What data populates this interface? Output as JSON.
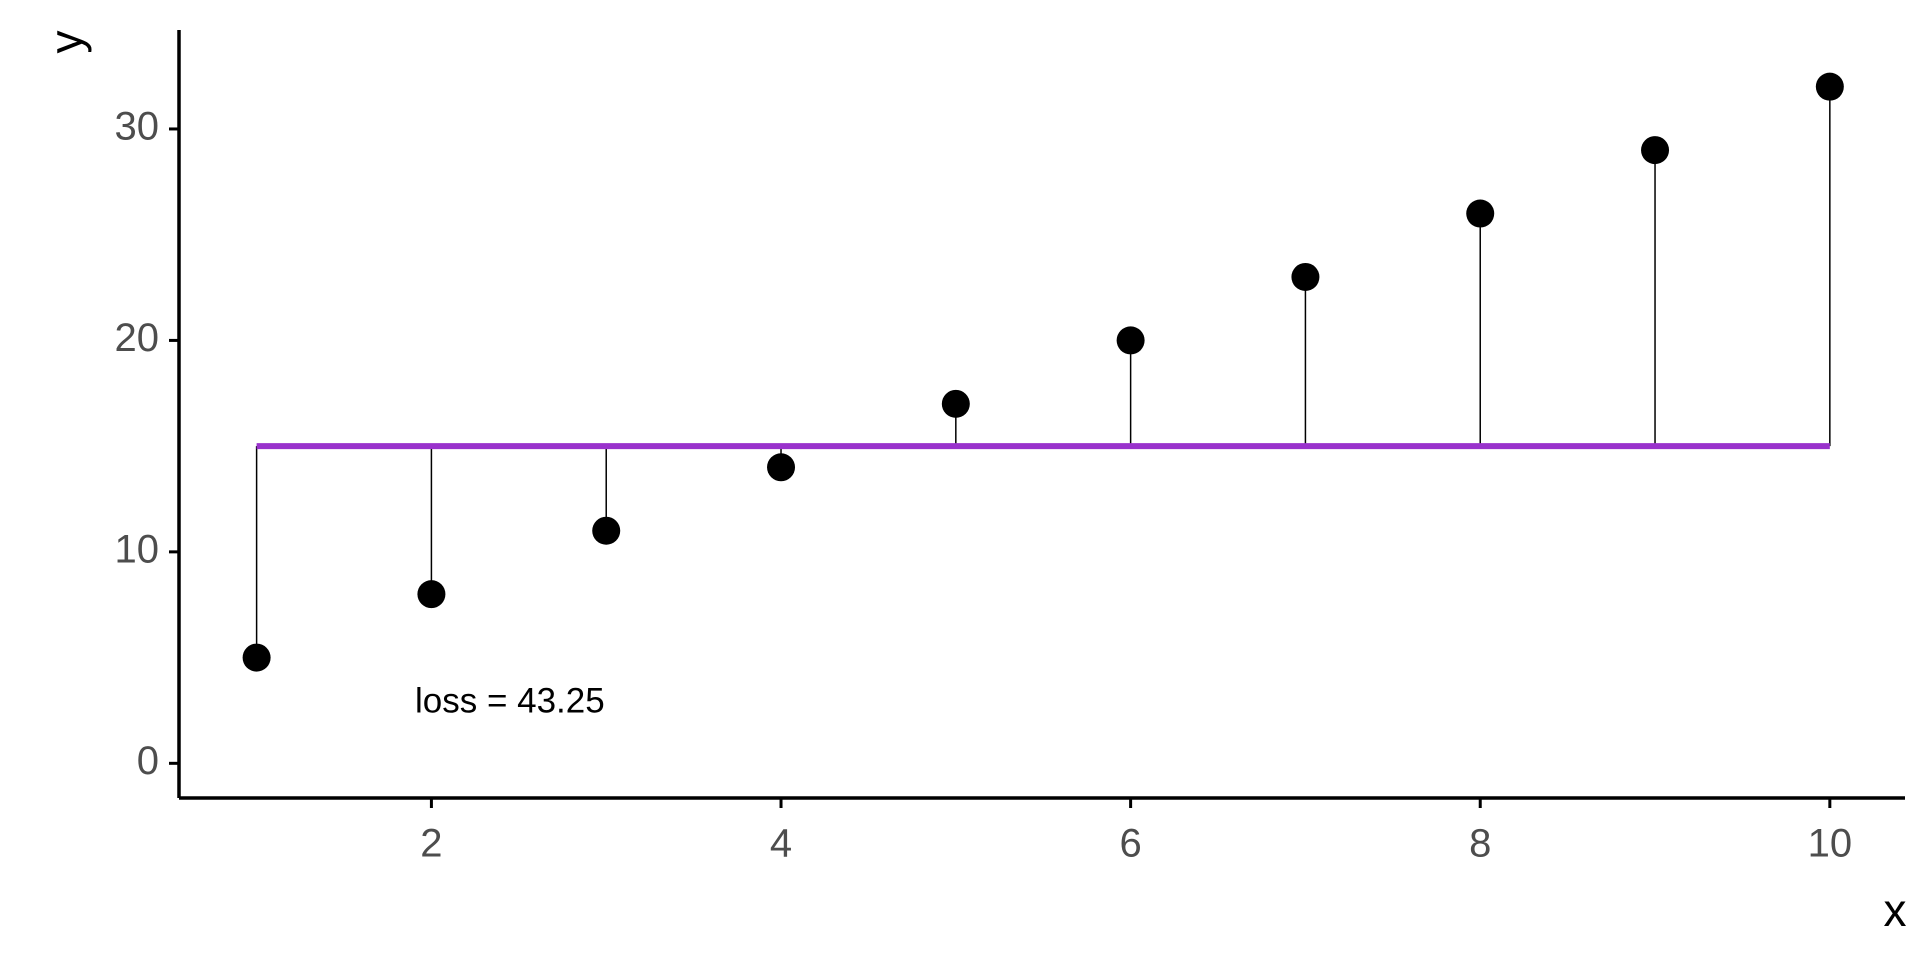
{
  "chart_data": {
    "type": "scatter",
    "x_label": "x",
    "y_label": "y",
    "x": [
      1,
      2,
      3,
      4,
      5,
      6,
      7,
      8,
      9,
      10
    ],
    "series": [
      {
        "color": "#000000",
        "values": [
          5,
          8,
          11,
          14,
          17,
          20,
          23,
          26,
          29,
          32
        ]
      }
    ],
    "reference_line": {
      "value": 15,
      "color": "#9932CC"
    },
    "annotation": "loss = 43.25",
    "xlim": [
      0.556,
      10.43
    ],
    "xticks": [
      2,
      4,
      6,
      8,
      10
    ],
    "ylim": [
      -1.64,
      34.68
    ],
    "yticks": [
      0,
      10,
      20,
      30
    ],
    "grid": false
  }
}
